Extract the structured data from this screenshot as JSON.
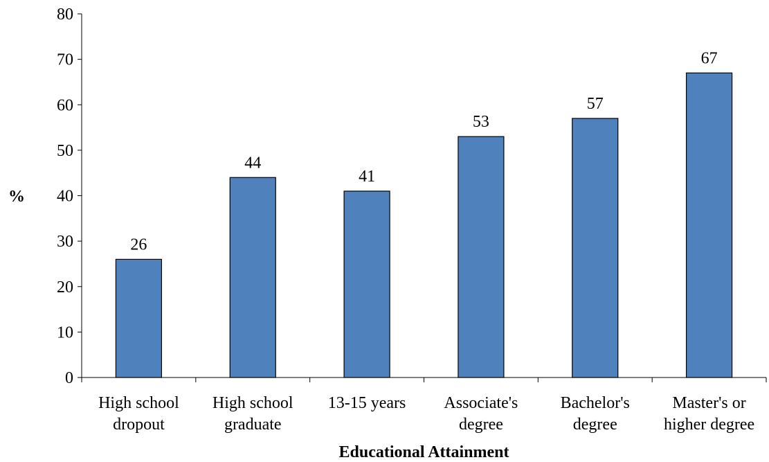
{
  "chart_data": {
    "type": "bar",
    "categories": [
      [
        "High school",
        "dropout"
      ],
      [
        "High school",
        "graduate"
      ],
      [
        "13-15 years"
      ],
      [
        "Associate's",
        "degree"
      ],
      [
        "Bachelor's",
        "degree"
      ],
      [
        "Master's or",
        "higher degree"
      ]
    ],
    "values": [
      26,
      44,
      41,
      53,
      57,
      67
    ],
    "data_labels": [
      "26",
      "44",
      "41",
      "53",
      "57",
      "67"
    ],
    "xlabel": "Educational Attainment",
    "ylabel": "%",
    "ylim": [
      0,
      80
    ],
    "yticks": [
      0,
      10,
      20,
      30,
      40,
      50,
      60,
      70,
      80
    ],
    "grid": false,
    "legend": "none",
    "bar_color": "#4f81bd",
    "bar_edge_color": "#000000"
  }
}
